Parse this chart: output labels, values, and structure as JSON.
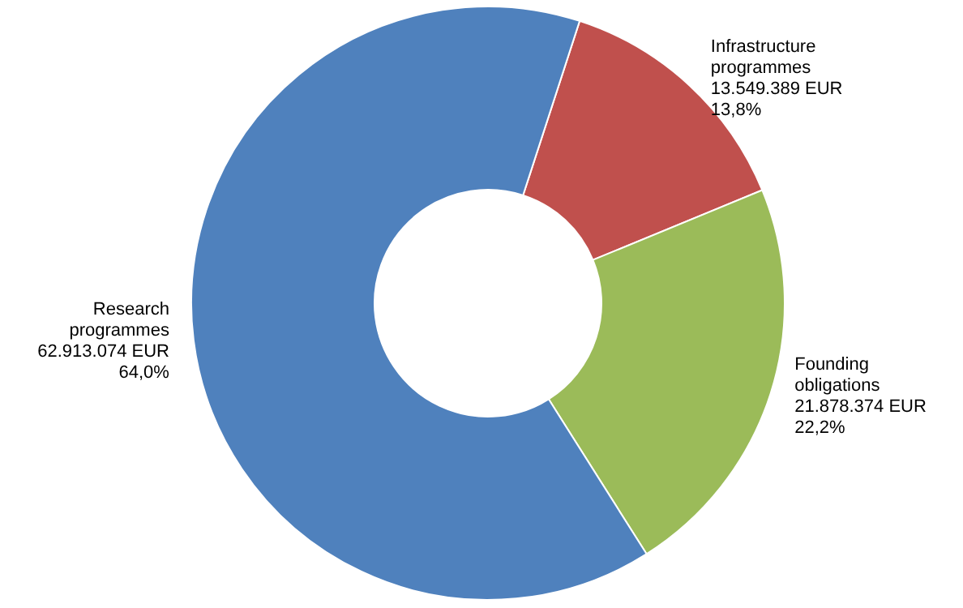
{
  "chart_data": {
    "type": "donut",
    "categories": [
      "Infrastructure\nprogrammes",
      "Founding\nobligations",
      "Research\nprogrammes"
    ],
    "values": [
      13549389,
      21878374,
      62913074
    ],
    "value_labels": [
      "13.549.389 EUR\n13,8%",
      "21.878.374 EUR\n22,2%",
      "62.913.074 EUR\n64,0%"
    ],
    "colors": [
      "#c0504d",
      "#9bbb59",
      "#4f81bd"
    ],
    "legend": false
  }
}
